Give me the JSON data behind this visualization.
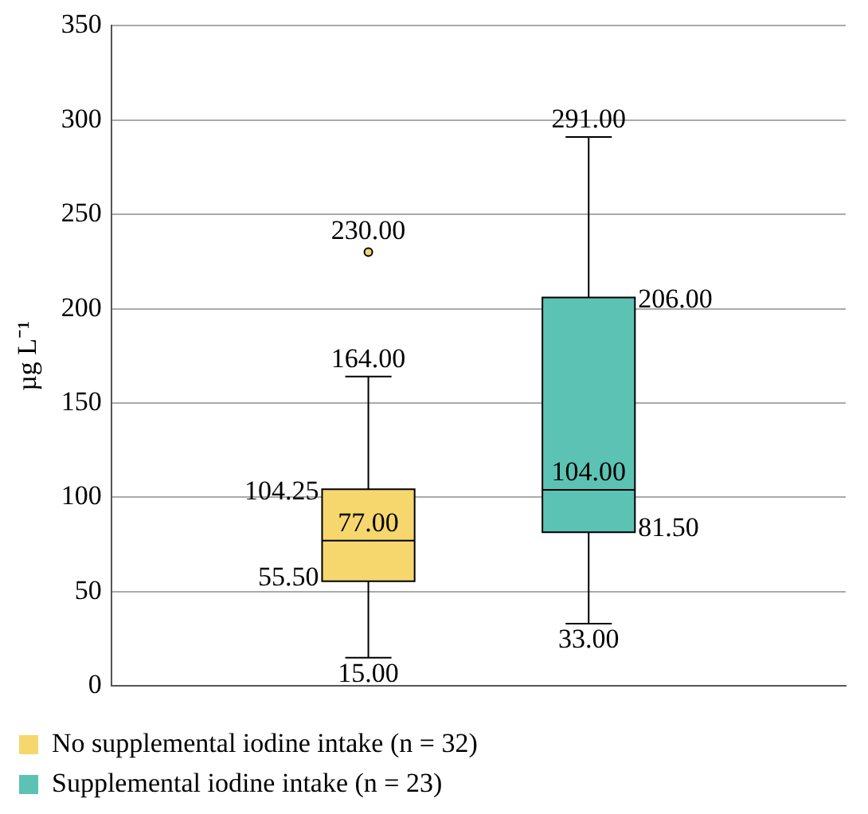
{
  "chart_data": {
    "type": "box",
    "ylabel": "µg L⁻¹",
    "categories": [
      null
    ],
    "series": [
      {
        "name": "No supplemental iodine intake (n = 32)",
        "color": "#f5d76e",
        "boxes": [
          {
            "low": 15,
            "q1": 55.5,
            "median": 77,
            "q3": 104.25,
            "high": 164,
            "outliers": [
              230
            ]
          }
        ]
      },
      {
        "name": "Supplemental iodine intake (n = 23)",
        "color": "#5cc2b4",
        "boxes": [
          {
            "low": 33,
            "q1": 81.5,
            "median": 104,
            "q3": 206,
            "high": 291
          }
        ]
      }
    ],
    "annotations": [
      "15.00",
      "55.50",
      "77.00",
      "104.25",
      "164.00",
      "230.00",
      "33.00",
      "81.50",
      "104.00",
      "206.00",
      "291.00"
    ],
    "ylim": [
      0,
      350
    ],
    "yticks": [
      0,
      50,
      100,
      150,
      200,
      250,
      300,
      350
    ],
    "grid": "y",
    "legend": "bottom"
  }
}
